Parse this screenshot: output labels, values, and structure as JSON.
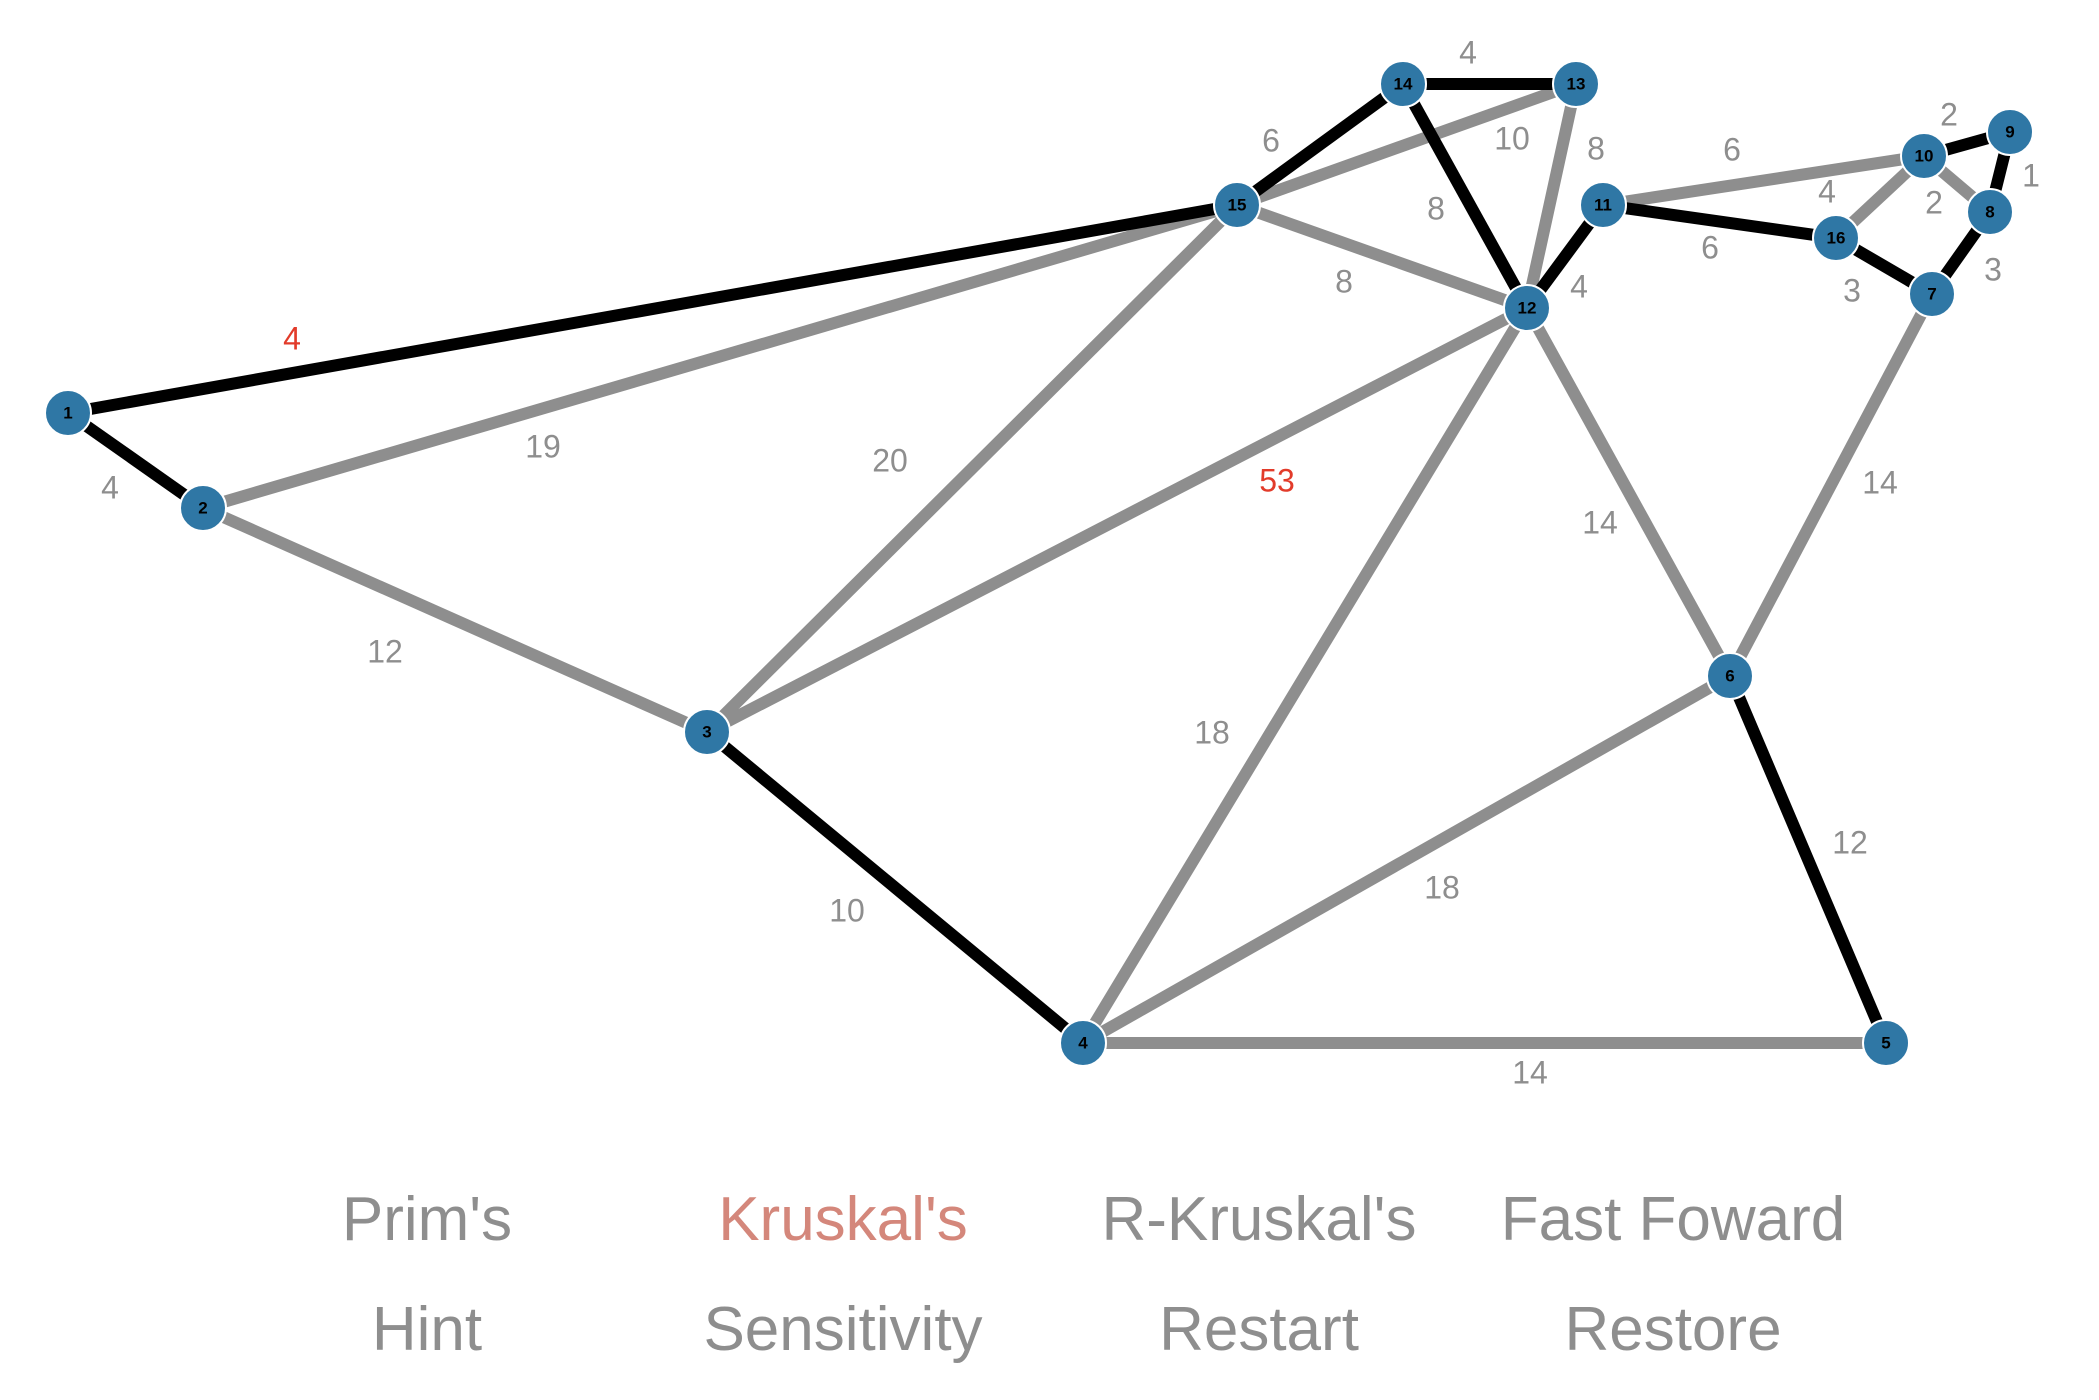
{
  "colors": {
    "node_fill": "#2f77a5",
    "mst_edge": "#000000",
    "other_edge": "#8e8e8e",
    "weight_label": "#8e8e8e",
    "highlight_label": "#e23b2a",
    "button_text": "#8e8e8e",
    "active_button": "#d4877b"
  },
  "graph": {
    "nodes": [
      {
        "id": "1",
        "label": "1"
      },
      {
        "id": "2",
        "label": "2"
      },
      {
        "id": "3",
        "label": "3"
      },
      {
        "id": "4",
        "label": "4"
      },
      {
        "id": "5",
        "label": "5"
      },
      {
        "id": "6",
        "label": "6"
      },
      {
        "id": "7",
        "label": "7"
      },
      {
        "id": "8",
        "label": "8"
      },
      {
        "id": "9",
        "label": "9"
      },
      {
        "id": "10",
        "label": "10"
      },
      {
        "id": "11",
        "label": "11"
      },
      {
        "id": "12",
        "label": "12"
      },
      {
        "id": "13",
        "label": "13"
      },
      {
        "id": "14",
        "label": "14"
      },
      {
        "id": "15",
        "label": "15"
      },
      {
        "id": "16",
        "label": "16"
      }
    ],
    "edges": [
      {
        "from": "1",
        "to": "15",
        "weight": "4",
        "in_tree": true,
        "highlight": true
      },
      {
        "from": "1",
        "to": "2",
        "weight": "4",
        "in_tree": true,
        "highlight": false
      },
      {
        "from": "2",
        "to": "15",
        "weight": "19",
        "in_tree": false,
        "highlight": false
      },
      {
        "from": "2",
        "to": "3",
        "weight": "12",
        "in_tree": false,
        "highlight": false
      },
      {
        "from": "3",
        "to": "15",
        "weight": "20",
        "in_tree": false,
        "highlight": false
      },
      {
        "from": "3",
        "to": "12",
        "weight": "53",
        "in_tree": false,
        "highlight": true
      },
      {
        "from": "3",
        "to": "4",
        "weight": "10",
        "in_tree": true,
        "highlight": false
      },
      {
        "from": "4",
        "to": "12",
        "weight": "18",
        "in_tree": false,
        "highlight": false
      },
      {
        "from": "4",
        "to": "6",
        "weight": "18",
        "in_tree": false,
        "highlight": false
      },
      {
        "from": "4",
        "to": "5",
        "weight": "14",
        "in_tree": false,
        "highlight": false
      },
      {
        "from": "6",
        "to": "5",
        "weight": "12",
        "in_tree": true,
        "highlight": false
      },
      {
        "from": "12",
        "to": "6",
        "weight": "14",
        "in_tree": false,
        "highlight": false
      },
      {
        "from": "7",
        "to": "6",
        "weight": "14",
        "in_tree": false,
        "highlight": false
      },
      {
        "from": "15",
        "to": "14",
        "weight": "6",
        "in_tree": true,
        "highlight": false
      },
      {
        "from": "15",
        "to": "13",
        "weight": "10",
        "in_tree": false,
        "highlight": false
      },
      {
        "from": "15",
        "to": "12",
        "weight": "8",
        "in_tree": false,
        "highlight": false
      },
      {
        "from": "14",
        "to": "13",
        "weight": "4",
        "in_tree": true,
        "highlight": false
      },
      {
        "from": "14",
        "to": "12",
        "weight": "8",
        "in_tree": true,
        "highlight": false
      },
      {
        "from": "13",
        "to": "12",
        "weight": "8",
        "in_tree": false,
        "highlight": false
      },
      {
        "from": "12",
        "to": "11",
        "weight": "4",
        "in_tree": true,
        "highlight": false
      },
      {
        "from": "11",
        "to": "10",
        "weight": "6",
        "in_tree": false,
        "highlight": false
      },
      {
        "from": "11",
        "to": "16",
        "weight": "6",
        "in_tree": true,
        "highlight": false
      },
      {
        "from": "16",
        "to": "10",
        "weight": "4",
        "in_tree": false,
        "highlight": false
      },
      {
        "from": "16",
        "to": "7",
        "weight": "3",
        "in_tree": true,
        "highlight": false
      },
      {
        "from": "10",
        "to": "9",
        "weight": "2",
        "in_tree": true,
        "highlight": false
      },
      {
        "from": "10",
        "to": "8",
        "weight": "2",
        "in_tree": false,
        "highlight": false
      },
      {
        "from": "9",
        "to": "8",
        "weight": "1",
        "in_tree": true,
        "highlight": false
      },
      {
        "from": "8",
        "to": "7",
        "weight": "3",
        "in_tree": true,
        "highlight": false
      }
    ]
  },
  "controls": {
    "prims": "Prim's",
    "kruskals": "Kruskal's",
    "r_kruskals": "R-Kruskal's",
    "fast_forward": "Fast Foward",
    "hint": "Hint",
    "sensitivity": "Sensitivity",
    "restart": "Restart",
    "restore": "Restore",
    "active": "kruskals"
  }
}
